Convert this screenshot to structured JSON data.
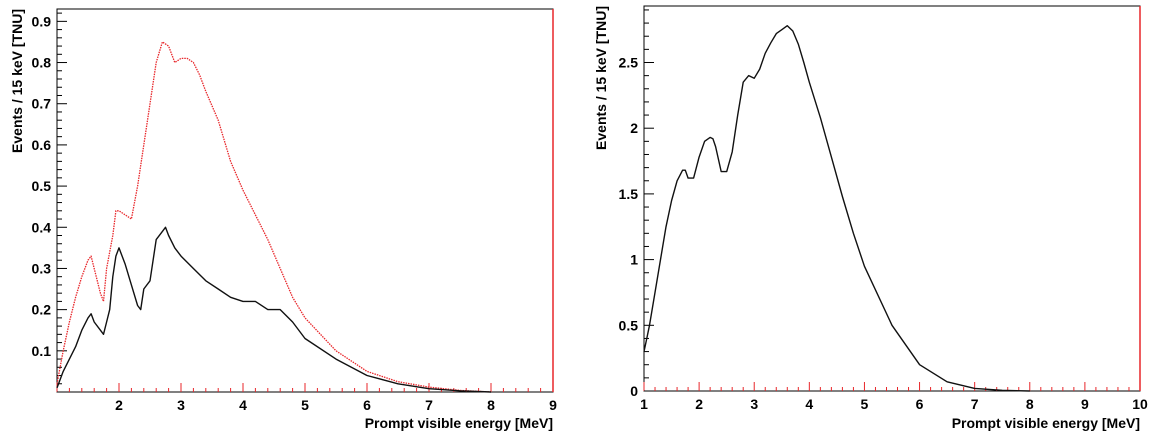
{
  "chart_data": [
    {
      "type": "line",
      "title": "",
      "xlabel": "Prompt visible energy [MeV]",
      "ylabel": "Events / 15 keV [TNU]",
      "xlim": [
        1,
        9
      ],
      "ylim": [
        0,
        0.93
      ],
      "x_ticks": [
        2,
        3,
        4,
        5,
        6,
        7,
        8,
        9
      ],
      "y_ticks": [
        0.1,
        0.2,
        0.3,
        0.4,
        0.5,
        0.6,
        0.7,
        0.8,
        0.9
      ],
      "grid": false,
      "series": [
        {
          "color": "#e8262a",
          "style": "dotted",
          "x": [
            1.0,
            1.1,
            1.2,
            1.3,
            1.4,
            1.5,
            1.55,
            1.6,
            1.7,
            1.75,
            1.8,
            1.9,
            1.95,
            2.0,
            2.1,
            2.2,
            2.3,
            2.4,
            2.5,
            2.6,
            2.7,
            2.8,
            2.9,
            3.0,
            3.1,
            3.2,
            3.3,
            3.4,
            3.6,
            3.8,
            4.0,
            4.2,
            4.4,
            4.6,
            4.8,
            5.0,
            5.5,
            6.0,
            6.5,
            7.0,
            7.5,
            8.0
          ],
          "y": [
            0.02,
            0.1,
            0.17,
            0.23,
            0.28,
            0.32,
            0.33,
            0.3,
            0.24,
            0.22,
            0.3,
            0.38,
            0.44,
            0.44,
            0.43,
            0.42,
            0.5,
            0.6,
            0.7,
            0.8,
            0.85,
            0.84,
            0.8,
            0.81,
            0.81,
            0.8,
            0.77,
            0.73,
            0.66,
            0.56,
            0.49,
            0.43,
            0.37,
            0.3,
            0.23,
            0.18,
            0.1,
            0.05,
            0.025,
            0.012,
            0.004,
            0.0
          ]
        },
        {
          "color": "#111111",
          "style": "solid",
          "x": [
            1.0,
            1.1,
            1.2,
            1.3,
            1.4,
            1.5,
            1.55,
            1.6,
            1.7,
            1.75,
            1.8,
            1.85,
            1.9,
            1.95,
            2.0,
            2.1,
            2.2,
            2.3,
            2.35,
            2.4,
            2.5,
            2.6,
            2.7,
            2.75,
            2.8,
            2.9,
            3.0,
            3.2,
            3.4,
            3.6,
            3.8,
            4.0,
            4.2,
            4.4,
            4.6,
            4.8,
            5.0,
            5.5,
            6.0,
            6.5,
            7.0,
            7.5,
            8.0
          ],
          "y": [
            0.01,
            0.05,
            0.08,
            0.11,
            0.15,
            0.18,
            0.19,
            0.17,
            0.15,
            0.14,
            0.17,
            0.2,
            0.28,
            0.33,
            0.35,
            0.31,
            0.26,
            0.21,
            0.2,
            0.25,
            0.27,
            0.37,
            0.39,
            0.4,
            0.38,
            0.35,
            0.33,
            0.3,
            0.27,
            0.25,
            0.23,
            0.22,
            0.22,
            0.2,
            0.2,
            0.17,
            0.13,
            0.08,
            0.04,
            0.02,
            0.008,
            0.003,
            0.0
          ]
        }
      ]
    },
    {
      "type": "line",
      "title": "",
      "xlabel": "Prompt visible energy [MeV]",
      "ylabel": "Events / 15 keV [TNU]",
      "xlim": [
        1,
        10
      ],
      "ylim": [
        0,
        2.93
      ],
      "x_ticks": [
        1,
        2,
        3,
        4,
        5,
        6,
        7,
        8,
        9,
        10
      ],
      "y_ticks": [
        0,
        0.5,
        1,
        1.5,
        2,
        2.5
      ],
      "grid": false,
      "series": [
        {
          "color": "#111111",
          "style": "solid",
          "x": [
            1.0,
            1.05,
            1.1,
            1.2,
            1.3,
            1.4,
            1.5,
            1.6,
            1.7,
            1.75,
            1.8,
            1.9,
            2.0,
            2.1,
            2.2,
            2.25,
            2.3,
            2.4,
            2.5,
            2.6,
            2.7,
            2.8,
            2.9,
            3.0,
            3.1,
            3.2,
            3.3,
            3.4,
            3.5,
            3.6,
            3.7,
            3.8,
            3.9,
            4.0,
            4.2,
            4.4,
            4.6,
            4.8,
            5.0,
            5.5,
            6.0,
            6.5,
            7.0,
            7.5,
            8.0
          ],
          "y": [
            0.3,
            0.4,
            0.5,
            0.75,
            1.0,
            1.25,
            1.45,
            1.6,
            1.68,
            1.68,
            1.62,
            1.62,
            1.78,
            1.9,
            1.93,
            1.92,
            1.86,
            1.67,
            1.67,
            1.82,
            2.1,
            2.35,
            2.4,
            2.38,
            2.45,
            2.57,
            2.65,
            2.72,
            2.75,
            2.78,
            2.74,
            2.64,
            2.5,
            2.35,
            2.08,
            1.78,
            1.48,
            1.2,
            0.95,
            0.5,
            0.2,
            0.07,
            0.02,
            0.005,
            0.0
          ]
        }
      ]
    }
  ]
}
